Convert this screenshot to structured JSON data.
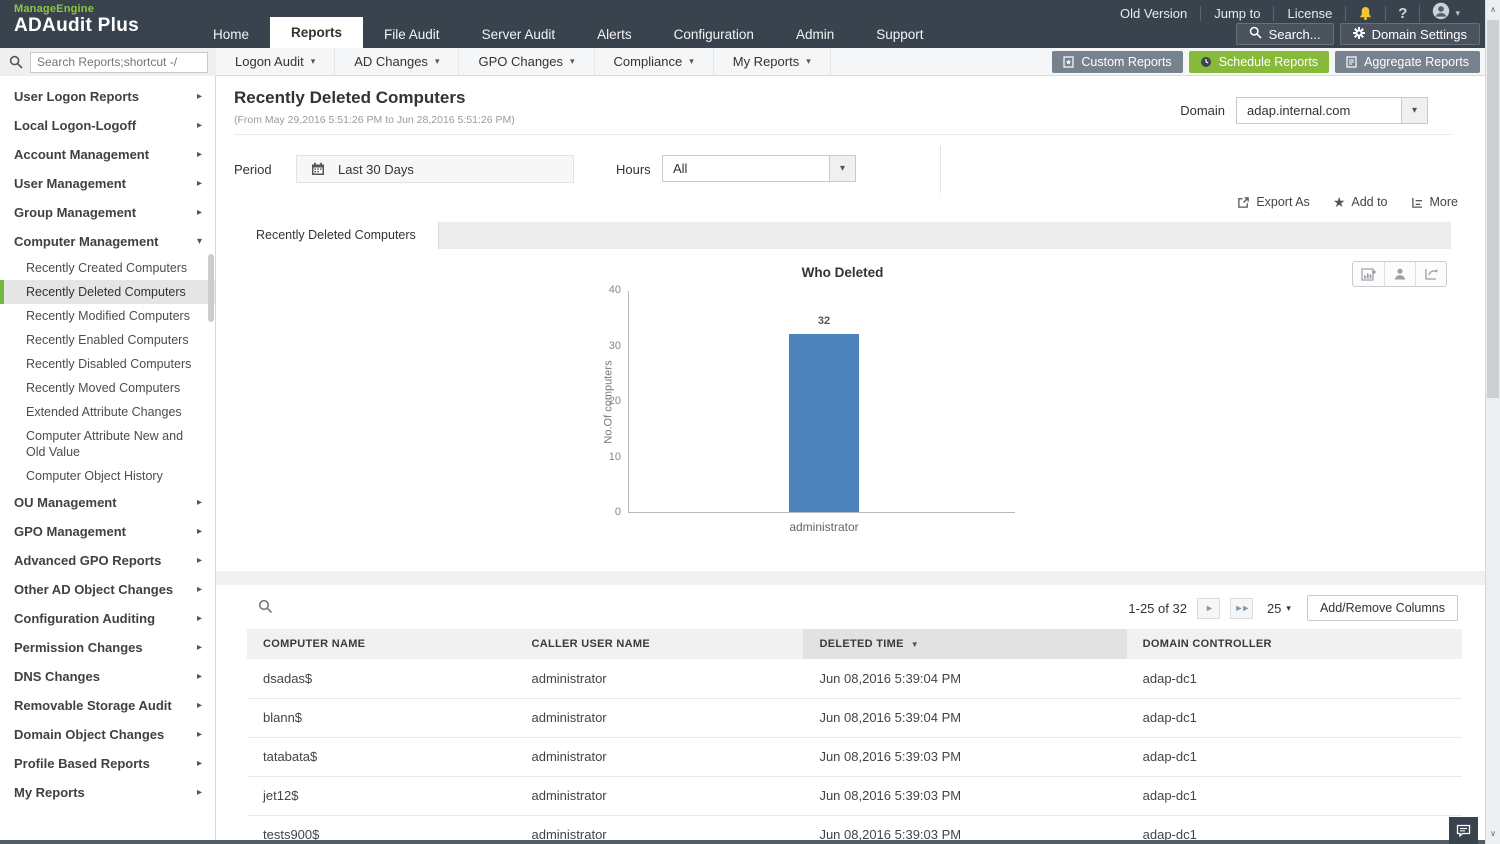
{
  "brand": {
    "logo_top": "ManageEngine",
    "logo_main": "ADAudit Plus"
  },
  "header": {
    "tabs": [
      {
        "label": "Home"
      },
      {
        "label": "Reports"
      },
      {
        "label": "File Audit"
      },
      {
        "label": "Server Audit"
      },
      {
        "label": "Alerts"
      },
      {
        "label": "Configuration"
      },
      {
        "label": "Admin"
      },
      {
        "label": "Support"
      }
    ],
    "utility": [
      "Old Version",
      "Jump to",
      "License"
    ],
    "search_button": "Search...",
    "domain_settings_button": "Domain Settings"
  },
  "subnav": {
    "search_placeholder": "Search Reports;shortcut -/",
    "menus": [
      "Logon Audit",
      "AD Changes",
      "GPO Changes",
      "Compliance",
      "My Reports"
    ],
    "actions": [
      "Custom Reports",
      "Schedule Reports",
      "Aggregate Reports"
    ]
  },
  "sidebar": {
    "top": [
      "User Logon Reports",
      "Local Logon-Logoff",
      "Account Management",
      "User Management",
      "Group Management"
    ],
    "computer_group": "Computer Management",
    "computer_sub": [
      "Recently Created Computers",
      "Recently Deleted Computers",
      "Recently Modified Computers",
      "Recently Enabled Computers",
      "Recently Disabled Computers",
      "Recently Moved Computers",
      "Extended Attribute Changes",
      "Computer Attribute New and Old Value",
      "Computer Object History"
    ],
    "selected": "Recently Deleted Computers",
    "bottom": [
      "OU Management",
      "GPO Management",
      "Advanced GPO Reports",
      "Other AD Object Changes",
      "Configuration Auditing",
      "Permission Changes",
      "DNS Changes",
      "Removable Storage Audit",
      "Domain Object Changes",
      "Profile Based Reports",
      "My Reports"
    ]
  },
  "report": {
    "title": "Recently Deleted Computers",
    "range": "(From May 29,2016 5:51:26 PM to Jun 28,2016 5:51:26 PM)",
    "domain_label": "Domain",
    "domain_value": "adap.internal.com",
    "period_label": "Period",
    "period_value": "Last 30 Days",
    "hours_label": "Hours",
    "hours_value": "All",
    "actions": [
      "Export As",
      "Add to",
      "More"
    ],
    "tab": "Recently Deleted Computers"
  },
  "chart_data": {
    "type": "bar",
    "title": "Who Deleted",
    "ylabel": "No.Of computers",
    "categories": [
      "administrator"
    ],
    "values": [
      32
    ],
    "ylim": [
      0,
      40
    ],
    "yticks": [
      "40",
      "30",
      "20",
      "10",
      "0"
    ],
    "bar_color": "#4d82bd",
    "grid": false,
    "legend": "none"
  },
  "table": {
    "pagination": {
      "range": "1-25 of 32",
      "page_size": "25",
      "add_remove_label": "Add/Remove Columns"
    },
    "columns": [
      "COMPUTER NAME",
      "CALLER USER NAME",
      "DELETED TIME",
      "DOMAIN CONTROLLER"
    ],
    "sorted_column": "DELETED TIME",
    "rows": [
      [
        "dsadas$",
        "administrator",
        "Jun 08,2016 5:39:04 PM",
        "adap-dc1"
      ],
      [
        "blann$",
        "administrator",
        "Jun 08,2016 5:39:04 PM",
        "adap-dc1"
      ],
      [
        "tatabata$",
        "administrator",
        "Jun 08,2016 5:39:03 PM",
        "adap-dc1"
      ],
      [
        "jet12$",
        "administrator",
        "Jun 08,2016 5:39:03 PM",
        "adap-dc1"
      ],
      [
        "tests900$",
        "administrator",
        "Jun 08,2016 5:39:03 PM",
        "adap-dc1"
      ]
    ]
  },
  "colors": {
    "accent_green": "#87ba3b",
    "brand_green": "#8dc541",
    "header_dark": "#39434e",
    "bar_blue": "#4d82bd"
  }
}
